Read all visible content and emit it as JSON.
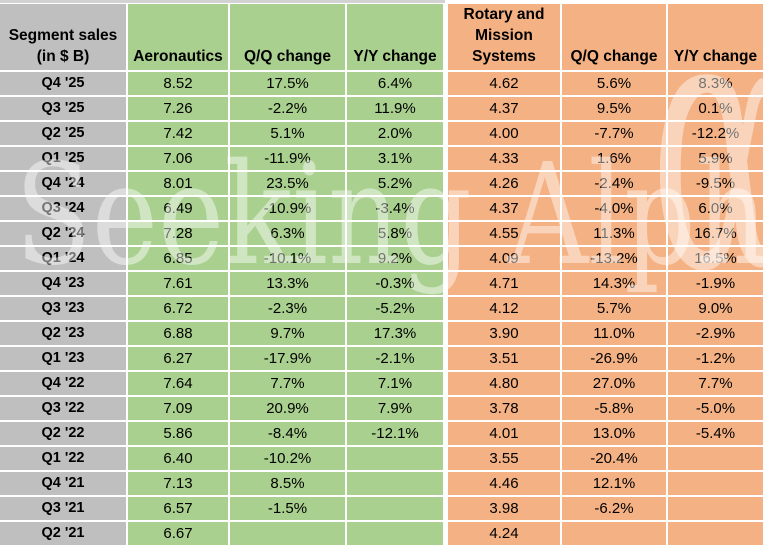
{
  "header": {
    "corner_line1": "Segment sales",
    "corner_line2": "(in $ B)",
    "aero_label": "Aeronautics",
    "aero_qq_label": "Q/Q change",
    "aero_yy_label": "Y/Y change",
    "rms_label": "Rotary and Mission Systems",
    "rms_qq_label": "Q/Q change",
    "rms_yy_label": "Y/Y change"
  },
  "watermark": {
    "text": "Seeking Alpha",
    "alpha_symbol": "α"
  },
  "colors": {
    "label_bg": "#BFBFBF",
    "aero_bg": "#A9D08E",
    "rms_bg": "#F4B183",
    "grid": "#FFFFFF",
    "text": "#000000"
  },
  "chart_data": {
    "type": "table",
    "title": "Segment sales (in $ B)",
    "columns": [
      "Segment sales (in $ B)",
      "Aeronautics",
      "Q/Q change",
      "Y/Y change",
      "Rotary and Mission Systems",
      "Q/Q change",
      "Y/Y change"
    ],
    "rows": [
      [
        "Q4 '25",
        "8.52",
        "17.5%",
        "6.4%",
        "4.62",
        "5.6%",
        "8.3%"
      ],
      [
        "Q3 '25",
        "7.26",
        "-2.2%",
        "11.9%",
        "4.37",
        "9.5%",
        "0.1%"
      ],
      [
        "Q2 '25",
        "7.42",
        "5.1%",
        "2.0%",
        "4.00",
        "-7.7%",
        "-12.2%"
      ],
      [
        "Q1 '25",
        "7.06",
        "-11.9%",
        "3.1%",
        "4.33",
        "1.6%",
        "5.9%"
      ],
      [
        "Q4 '24",
        "8.01",
        "23.5%",
        "5.2%",
        "4.26",
        "-2.4%",
        "-9.5%"
      ],
      [
        "Q3 '24",
        "6.49",
        "-10.9%",
        "-3.4%",
        "4.37",
        "-4.0%",
        "6.0%"
      ],
      [
        "Q2 '24",
        "7.28",
        "6.3%",
        "5.8%",
        "4.55",
        "11.3%",
        "16.7%"
      ],
      [
        "Q1 '24",
        "6.85",
        "-10.1%",
        "9.2%",
        "4.09",
        "-13.2%",
        "16.5%"
      ],
      [
        "Q4 '23",
        "7.61",
        "13.3%",
        "-0.3%",
        "4.71",
        "14.3%",
        "-1.9%"
      ],
      [
        "Q3 '23",
        "6.72",
        "-2.3%",
        "-5.2%",
        "4.12",
        "5.7%",
        "9.0%"
      ],
      [
        "Q2 '23",
        "6.88",
        "9.7%",
        "17.3%",
        "3.90",
        "11.0%",
        "-2.9%"
      ],
      [
        "Q1 '23",
        "6.27",
        "-17.9%",
        "-2.1%",
        "3.51",
        "-26.9%",
        "-1.2%"
      ],
      [
        "Q4 '22",
        "7.64",
        "7.7%",
        "7.1%",
        "4.80",
        "27.0%",
        "7.7%"
      ],
      [
        "Q3 '22",
        "7.09",
        "20.9%",
        "7.9%",
        "3.78",
        "-5.8%",
        "-5.0%"
      ],
      [
        "Q2 '22",
        "5.86",
        "-8.4%",
        "-12.1%",
        "4.01",
        "13.0%",
        "-5.4%"
      ],
      [
        "Q1 '22",
        "6.40",
        "-10.2%",
        "",
        "3.55",
        "-20.4%",
        ""
      ],
      [
        "Q4 '21",
        "7.13",
        "8.5%",
        "",
        "4.46",
        "12.1%",
        ""
      ],
      [
        "Q3 '21",
        "6.57",
        "-1.5%",
        "",
        "3.98",
        "-6.2%",
        ""
      ],
      [
        "Q2 '21",
        "6.67",
        "",
        "",
        "4.24",
        "",
        ""
      ]
    ]
  }
}
